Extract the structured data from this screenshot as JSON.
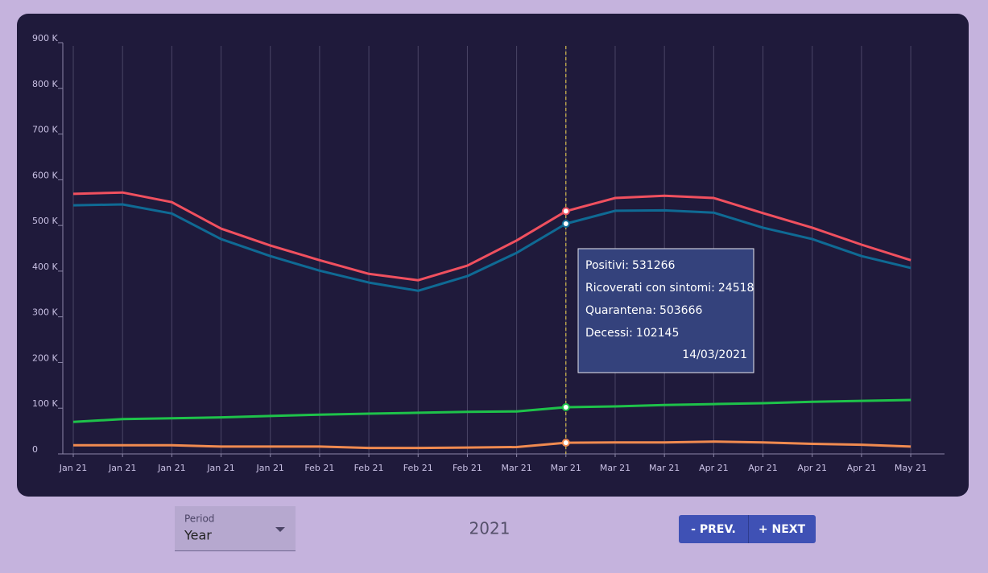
{
  "chart_data": {
    "type": "line",
    "categories": [
      "Jan 21",
      "Jan 21",
      "Jan 21",
      "Jan 21",
      "Jan 21",
      "Feb 21",
      "Feb 21",
      "Feb 21",
      "Feb 21",
      "Mar 21",
      "Mar 21",
      "Mar 21",
      "Mar 21",
      "Apr 21",
      "Apr 21",
      "Apr 21",
      "Apr 21",
      "May 21"
    ],
    "series": [
      {
        "color": "#f0505f",
        "values": [
          569000,
          572000,
          551000,
          493000,
          456000,
          424000,
          394000,
          380000,
          412000,
          467000,
          531266,
          560000,
          565000,
          560000,
          527000,
          495000,
          458000,
          424000
        ]
      },
      {
        "color": "#f08a50",
        "values": [
          19000,
          19000,
          19000,
          16000,
          16000,
          16000,
          13000,
          13000,
          14000,
          15000,
          24518,
          25000,
          25000,
          27000,
          25000,
          22000,
          20000,
          16000
        ]
      },
      {
        "color": "#0f6a94",
        "values": [
          544000,
          546000,
          526000,
          470000,
          433000,
          401000,
          375000,
          357000,
          389000,
          440000,
          503666,
          532000,
          533000,
          528000,
          495000,
          470000,
          433000,
          407000
        ]
      },
      {
        "color": "#1ec24a",
        "values": [
          70000,
          76000,
          78000,
          80000,
          83000,
          86000,
          88000,
          90000,
          92000,
          93000,
          102145,
          104000,
          107000,
          109000,
          111000,
          114000,
          116000,
          118000
        ]
      }
    ],
    "ylim": [
      0,
      900000
    ],
    "yticks": [
      0,
      {
        "value": 100000,
        "label": "100 K"
      },
      {
        "value": 200000,
        "label": "200 K"
      },
      {
        "value": 300000,
        "label": "300 K"
      },
      {
        "value": 400000,
        "label": "400 K"
      },
      {
        "value": 500000,
        "label": "500 K"
      },
      {
        "value": 600000,
        "label": "600 K"
      },
      {
        "value": 700000,
        "label": "700 K"
      },
      {
        "value": 800000,
        "label": "800 K"
      },
      {
        "value": 900000,
        "label": "900 K"
      }
    ],
    "grid": true,
    "tooltip": {
      "index": 10,
      "labels": [
        "Positivi:",
        "Ricoverati con sintomi:",
        "Quarantena:",
        "Decessi:"
      ],
      "date": "14/03/2021"
    }
  },
  "controls": {
    "period_label": "Period",
    "period_value": "Year",
    "year": "2021",
    "prev": "- PREV.",
    "next": "+ NEXT"
  }
}
